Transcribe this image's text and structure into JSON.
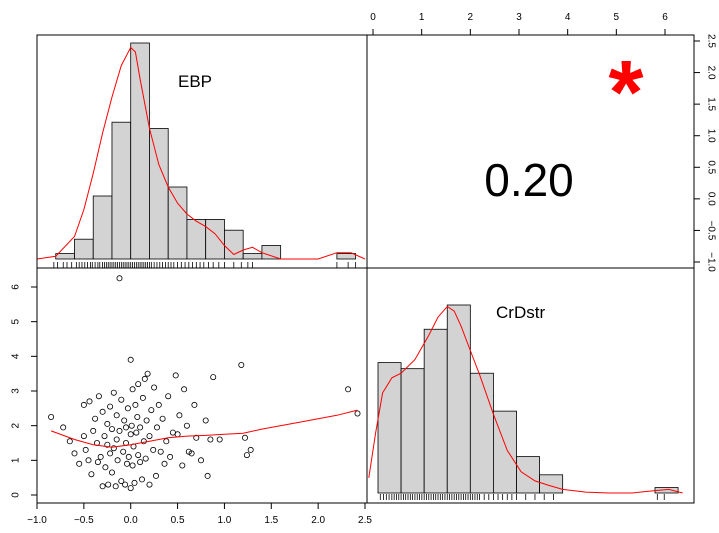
{
  "colors": {
    "bar_fill": "#d3d3d3",
    "bar_stroke": "#000000",
    "density": "#ff0000",
    "smoother": "#ff0000",
    "significance": "#ff0000",
    "points": "#000000"
  },
  "chart_data": [
    {
      "type": "bar",
      "panel": "diag-1",
      "label": "EBP",
      "bins": [
        {
          "from": -0.8,
          "to": -0.6,
          "height": 0.06
        },
        {
          "from": -0.6,
          "to": -0.4,
          "height": 0.22
        },
        {
          "from": -0.4,
          "to": -0.2,
          "height": 0.7
        },
        {
          "from": -0.2,
          "to": 0.0,
          "height": 1.52
        },
        {
          "from": 0.0,
          "to": 0.2,
          "height": 2.4
        },
        {
          "from": 0.2,
          "to": 0.4,
          "height": 1.45
        },
        {
          "from": 0.4,
          "to": 0.6,
          "height": 0.8
        },
        {
          "from": 0.6,
          "to": 0.8,
          "height": 0.44
        },
        {
          "from": 0.8,
          "to": 1.0,
          "height": 0.44
        },
        {
          "from": 1.0,
          "to": 1.2,
          "height": 0.32
        },
        {
          "from": 1.2,
          "to": 1.4,
          "height": 0.06
        },
        {
          "from": 1.4,
          "to": 1.6,
          "height": 0.15
        },
        {
          "from": 2.2,
          "to": 2.4,
          "height": 0.06
        }
      ],
      "density": [
        [
          -1.0,
          0.0
        ],
        [
          -0.8,
          0.03
        ],
        [
          -0.6,
          0.25
        ],
        [
          -0.5,
          0.55
        ],
        [
          -0.4,
          0.95
        ],
        [
          -0.3,
          1.4
        ],
        [
          -0.2,
          1.8
        ],
        [
          -0.1,
          2.15
        ],
        [
          0.0,
          2.35
        ],
        [
          0.05,
          2.3
        ],
        [
          0.1,
          2.0
        ],
        [
          0.2,
          1.45
        ],
        [
          0.3,
          1.05
        ],
        [
          0.4,
          0.8
        ],
        [
          0.5,
          0.62
        ],
        [
          0.6,
          0.5
        ],
        [
          0.7,
          0.42
        ],
        [
          0.8,
          0.36
        ],
        [
          0.9,
          0.28
        ],
        [
          1.0,
          0.15
        ],
        [
          1.1,
          0.05
        ],
        [
          1.2,
          0.1
        ],
        [
          1.3,
          0.13
        ],
        [
          1.4,
          0.07
        ],
        [
          1.6,
          0.0
        ],
        [
          2.0,
          0.0
        ],
        [
          2.2,
          0.07
        ],
        [
          2.35,
          0.07
        ],
        [
          2.5,
          0.0
        ]
      ],
      "rug": [
        -0.82,
        -0.78,
        -0.72,
        -0.68,
        -0.63,
        -0.58,
        -0.55,
        -0.52,
        -0.49,
        -0.46,
        -0.43,
        -0.41,
        -0.38,
        -0.35,
        -0.33,
        -0.3,
        -0.28,
        -0.26,
        -0.24,
        -0.22,
        -0.2,
        -0.18,
        -0.16,
        -0.14,
        -0.12,
        -0.1,
        -0.08,
        -0.06,
        -0.04,
        -0.02,
        0.0,
        0.02,
        0.04,
        0.06,
        0.08,
        0.1,
        0.12,
        0.14,
        0.16,
        0.18,
        0.2,
        0.22,
        0.25,
        0.28,
        0.31,
        0.34,
        0.37,
        0.4,
        0.43,
        0.46,
        0.5,
        0.54,
        0.58,
        0.62,
        0.66,
        0.7,
        0.74,
        0.78,
        0.83,
        0.88,
        0.94,
        1.0,
        1.1,
        1.18,
        1.25,
        1.3,
        2.2,
        2.32,
        2.4
      ],
      "xlim": [
        -1.0,
        2.5
      ],
      "ylim": [
        -1.0,
        2.5
      ]
    },
    {
      "type": "bar",
      "panel": "diag-2",
      "label": "CrDstr",
      "bins": [
        {
          "from": 0.0,
          "to": 0.5,
          "height": 0.43
        },
        {
          "from": 0.5,
          "to": 1.0,
          "height": 0.41
        },
        {
          "from": 1.0,
          "to": 1.5,
          "height": 0.54
        },
        {
          "from": 1.5,
          "to": 2.0,
          "height": 0.62
        },
        {
          "from": 2.0,
          "to": 2.5,
          "height": 0.395
        },
        {
          "from": 2.5,
          "to": 3.0,
          "height": 0.27
        },
        {
          "from": 3.0,
          "to": 3.5,
          "height": 0.12
        },
        {
          "from": 3.5,
          "to": 4.0,
          "height": 0.06
        },
        {
          "from": 6.0,
          "to": 6.5,
          "height": 0.018
        }
      ],
      "density": [
        [
          -0.2,
          0.05
        ],
        [
          -0.05,
          0.2
        ],
        [
          0.1,
          0.33
        ],
        [
          0.3,
          0.38
        ],
        [
          0.5,
          0.395
        ],
        [
          0.8,
          0.44
        ],
        [
          1.1,
          0.52
        ],
        [
          1.3,
          0.58
        ],
        [
          1.5,
          0.615
        ],
        [
          1.65,
          0.6
        ],
        [
          1.8,
          0.55
        ],
        [
          2.0,
          0.47
        ],
        [
          2.2,
          0.39
        ],
        [
          2.5,
          0.26
        ],
        [
          2.8,
          0.14
        ],
        [
          3.1,
          0.07
        ],
        [
          3.4,
          0.04
        ],
        [
          3.7,
          0.025
        ],
        [
          4.0,
          0.012
        ],
        [
          4.5,
          0.003
        ],
        [
          5.0,
          0.0
        ],
        [
          5.5,
          0.0
        ],
        [
          6.0,
          0.008
        ],
        [
          6.3,
          0.012
        ],
        [
          6.6,
          0.0
        ]
      ],
      "rug": [
        0.05,
        0.12,
        0.18,
        0.24,
        0.3,
        0.35,
        0.4,
        0.45,
        0.5,
        0.55,
        0.6,
        0.65,
        0.7,
        0.75,
        0.8,
        0.85,
        0.9,
        0.95,
        1.0,
        1.05,
        1.1,
        1.15,
        1.2,
        1.25,
        1.3,
        1.35,
        1.4,
        1.45,
        1.5,
        1.55,
        1.6,
        1.65,
        1.7,
        1.75,
        1.8,
        1.85,
        1.9,
        1.95,
        2.0,
        2.05,
        2.1,
        2.15,
        2.2,
        2.3,
        2.4,
        2.5,
        2.6,
        2.7,
        2.8,
        2.9,
        3.0,
        3.2,
        3.4,
        3.6,
        3.8,
        6.05,
        6.2
      ],
      "xlim": [
        -0.2,
        6.5
      ],
      "ylim": [
        0,
        0.65
      ]
    },
    {
      "type": "scatter",
      "panel": "lower-2-1",
      "x_var": "EBP",
      "y_var": "CrDstr",
      "xlim": [
        -1.0,
        2.5
      ],
      "ylim": [
        -0.1,
        6.5
      ],
      "x_ticks": [
        -1.0,
        -0.5,
        0.0,
        0.5,
        1.0,
        1.5,
        2.0,
        2.5
      ],
      "y_ticks": [
        0,
        1,
        2,
        3,
        4,
        5,
        6
      ],
      "points": [
        [
          -0.85,
          2.25
        ],
        [
          -0.72,
          1.95
        ],
        [
          -0.65,
          1.55
        ],
        [
          -0.6,
          1.2
        ],
        [
          -0.55,
          0.9
        ],
        [
          -0.5,
          1.7
        ],
        [
          -0.5,
          2.6
        ],
        [
          -0.48,
          1.3
        ],
        [
          -0.45,
          1.0
        ],
        [
          -0.44,
          2.7
        ],
        [
          -0.42,
          0.6
        ],
        [
          -0.4,
          1.85
        ],
        [
          -0.38,
          2.2
        ],
        [
          -0.36,
          1.5
        ],
        [
          -0.35,
          0.95
        ],
        [
          -0.34,
          2.85
        ],
        [
          -0.32,
          1.1
        ],
        [
          -0.3,
          0.25
        ],
        [
          -0.3,
          2.4
        ],
        [
          -0.28,
          1.7
        ],
        [
          -0.27,
          0.8
        ],
        [
          -0.25,
          1.45
        ],
        [
          -0.25,
          2.05
        ],
        [
          -0.24,
          0.3
        ],
        [
          -0.22,
          1.2
        ],
        [
          -0.22,
          2.55
        ],
        [
          -0.2,
          0.65
        ],
        [
          -0.2,
          1.9
        ],
        [
          -0.18,
          1.35
        ],
        [
          -0.18,
          2.95
        ],
        [
          -0.16,
          0.25
        ],
        [
          -0.15,
          1.6
        ],
        [
          -0.15,
          2.3
        ],
        [
          -0.14,
          1.0
        ],
        [
          -0.12,
          1.85
        ],
        [
          -0.12,
          6.25
        ],
        [
          -0.1,
          0.4
        ],
        [
          -0.1,
          2.75
        ],
        [
          -0.08,
          1.25
        ],
        [
          -0.07,
          2.15
        ],
        [
          -0.06,
          0.3
        ],
        [
          -0.05,
          1.5
        ],
        [
          -0.05,
          1.95
        ],
        [
          -0.04,
          0.9
        ],
        [
          -0.03,
          2.5
        ],
        [
          -0.02,
          1.1
        ],
        [
          0.0,
          0.2
        ],
        [
          0.0,
          1.75
        ],
        [
          0.0,
          3.9
        ],
        [
          0.01,
          2.0
        ],
        [
          0.02,
          0.85
        ],
        [
          0.02,
          3.05
        ],
        [
          0.03,
          1.4
        ],
        [
          0.04,
          0.35
        ],
        [
          0.05,
          2.6
        ],
        [
          0.06,
          1.8
        ],
        [
          0.07,
          2.25
        ],
        [
          0.08,
          1.15
        ],
        [
          0.08,
          3.2
        ],
        [
          0.1,
          0.95
        ],
        [
          0.1,
          1.95
        ],
        [
          0.12,
          0.45
        ],
        [
          0.13,
          2.8
        ],
        [
          0.14,
          1.55
        ],
        [
          0.15,
          3.35
        ],
        [
          0.16,
          1.05
        ],
        [
          0.17,
          2.15
        ],
        [
          0.18,
          3.5
        ],
        [
          0.2,
          0.3
        ],
        [
          0.2,
          1.7
        ],
        [
          0.22,
          2.45
        ],
        [
          0.24,
          1.3
        ],
        [
          0.25,
          3.1
        ],
        [
          0.27,
          0.55
        ],
        [
          0.28,
          1.95
        ],
        [
          0.3,
          2.6
        ],
        [
          0.32,
          1.25
        ],
        [
          0.34,
          2.2
        ],
        [
          0.36,
          0.9
        ],
        [
          0.38,
          1.55
        ],
        [
          0.4,
          2.85
        ],
        [
          0.42,
          1.1
        ],
        [
          0.45,
          1.8
        ],
        [
          0.48,
          3.45
        ],
        [
          0.5,
          1.75
        ],
        [
          0.52,
          2.3
        ],
        [
          0.55,
          0.85
        ],
        [
          0.57,
          3.05
        ],
        [
          0.6,
          2.0
        ],
        [
          0.62,
          1.25
        ],
        [
          0.65,
          1.2
        ],
        [
          0.68,
          2.6
        ],
        [
          0.7,
          1.65
        ],
        [
          0.75,
          1.0
        ],
        [
          0.8,
          2.15
        ],
        [
          0.82,
          0.55
        ],
        [
          0.85,
          1.6
        ],
        [
          0.88,
          3.4
        ],
        [
          0.95,
          1.6
        ],
        [
          1.18,
          3.75
        ],
        [
          1.22,
          1.65
        ],
        [
          1.24,
          1.15
        ],
        [
          1.28,
          1.3
        ],
        [
          2.32,
          3.05
        ],
        [
          2.42,
          2.35
        ]
      ],
      "smoother": [
        [
          -0.85,
          1.85
        ],
        [
          -0.6,
          1.6
        ],
        [
          -0.4,
          1.45
        ],
        [
          -0.2,
          1.38
        ],
        [
          0.0,
          1.45
        ],
        [
          0.2,
          1.55
        ],
        [
          0.4,
          1.65
        ],
        [
          0.6,
          1.7
        ],
        [
          0.8,
          1.72
        ],
        [
          1.0,
          1.75
        ],
        [
          1.2,
          1.78
        ],
        [
          1.4,
          1.9
        ],
        [
          1.8,
          2.1
        ],
        [
          2.2,
          2.3
        ],
        [
          2.42,
          2.45
        ]
      ]
    }
  ],
  "corr_panel": {
    "value_text": "0.20",
    "significance_text": "*",
    "x_ticks": [
      0,
      1,
      2,
      3,
      4,
      5,
      6
    ],
    "y_ticks": [
      -1.0,
      -0.5,
      0.0,
      0.5,
      1.0,
      1.5,
      2.0,
      2.5
    ]
  },
  "tick_text": {
    "top": [
      "0",
      "1",
      "2",
      "3",
      "4",
      "5",
      "6"
    ],
    "right": [
      "−1.0",
      "−0.5",
      "0.0",
      "0.5",
      "1.0",
      "1.5",
      "2.0",
      "2.5"
    ],
    "bottom": [
      "−1.0",
      "−0.5",
      "0.0",
      "0.5",
      "1.0",
      "1.5",
      "2.0",
      "2.5"
    ],
    "left": [
      "0",
      "1",
      "2",
      "3",
      "4",
      "5",
      "6"
    ]
  }
}
